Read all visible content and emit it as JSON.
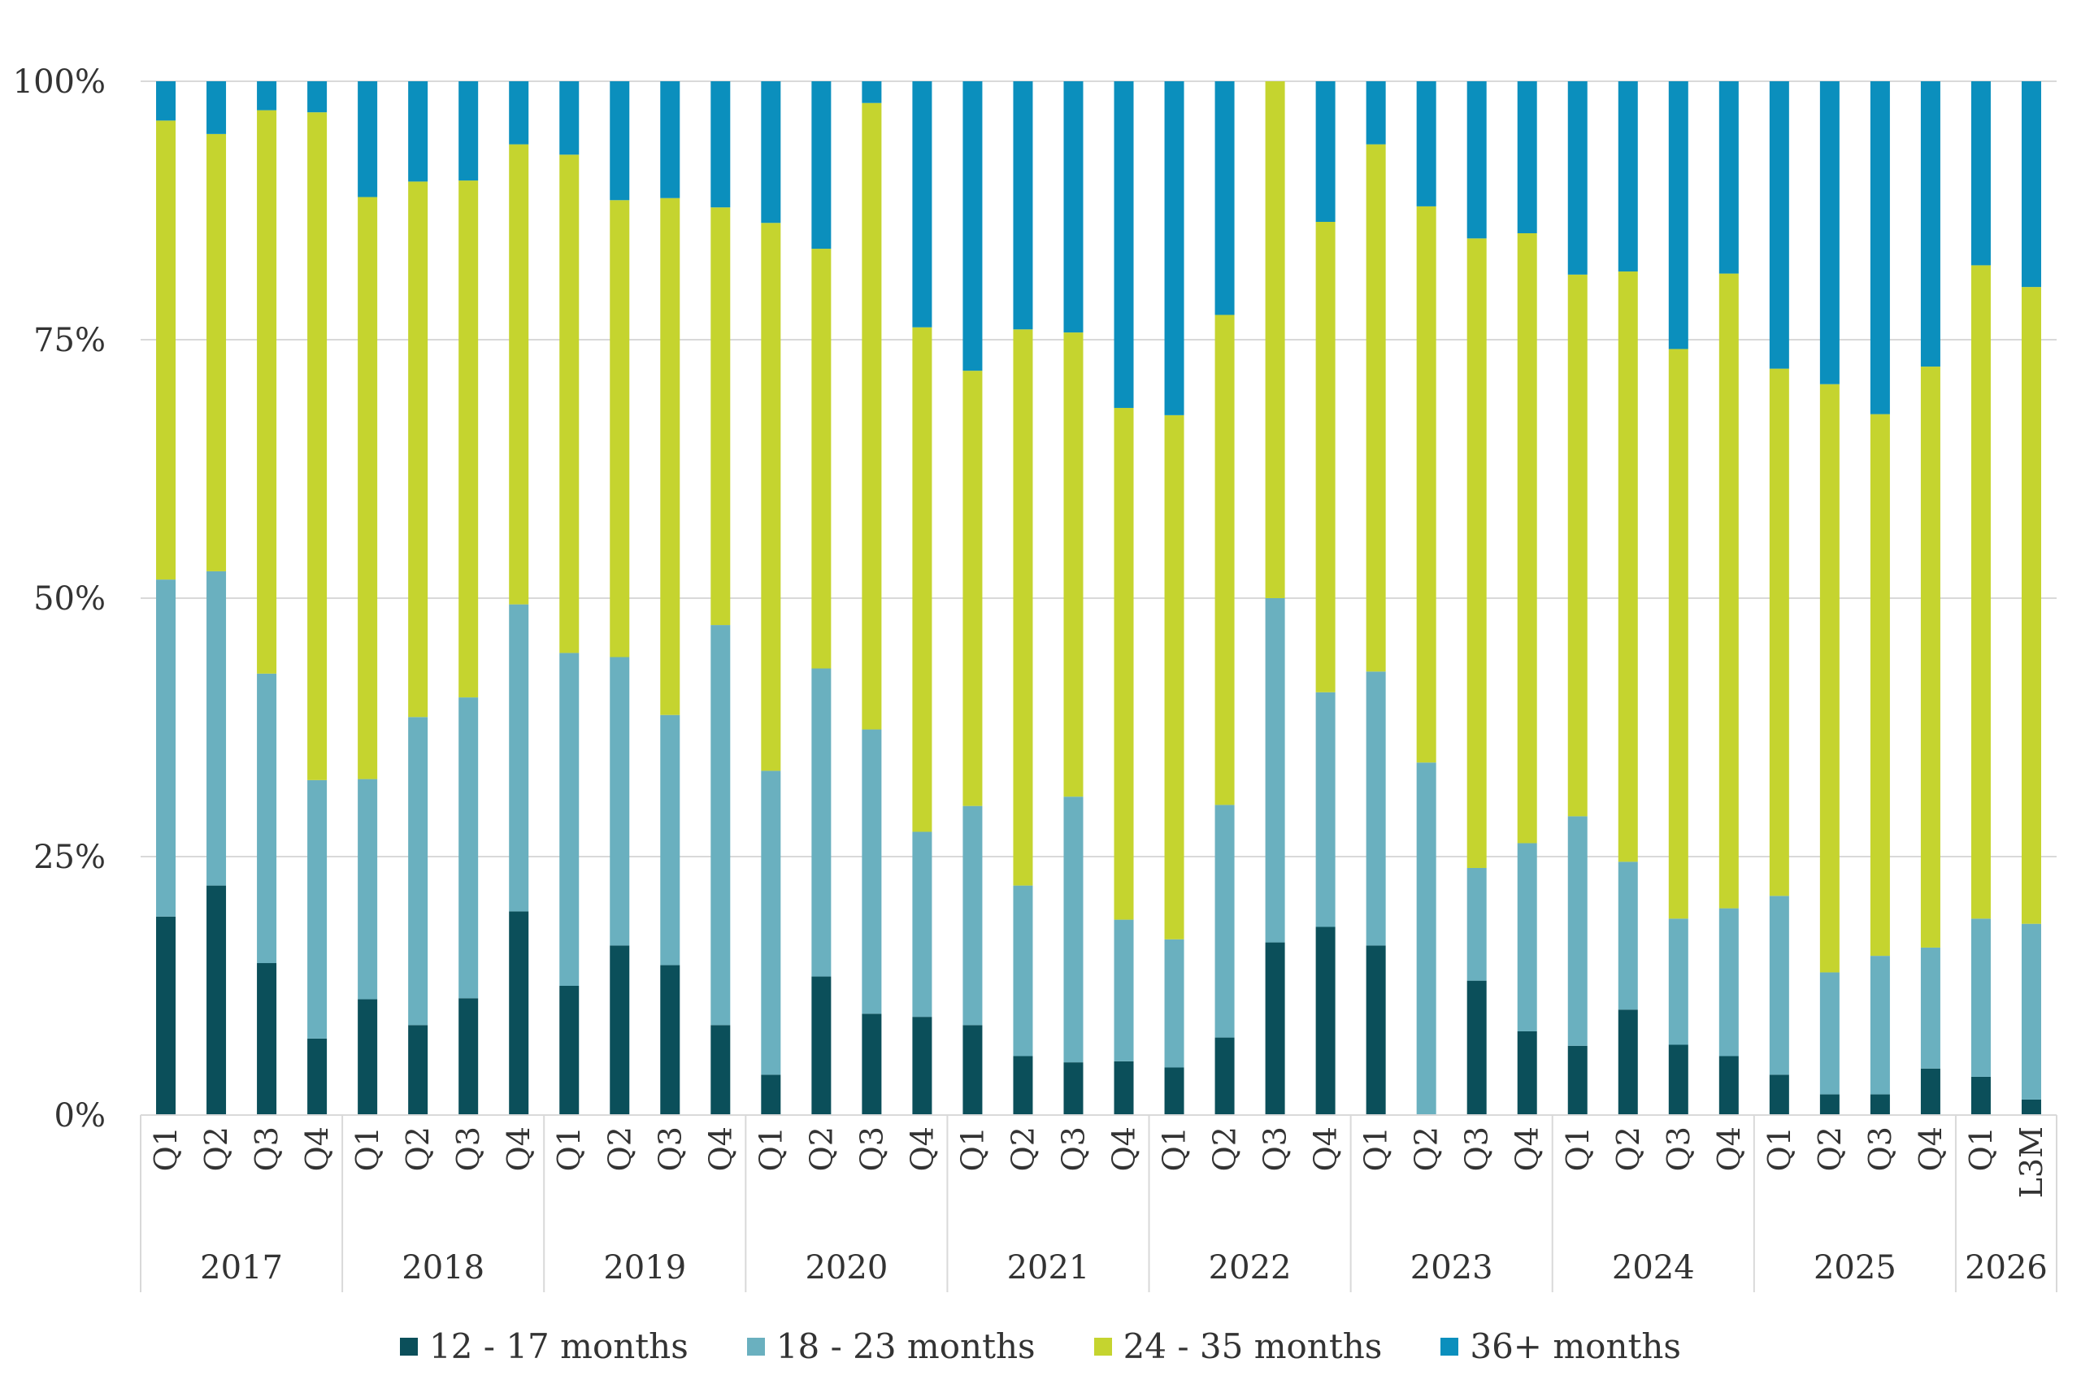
{
  "chart_data": {
    "type": "bar",
    "stacked": true,
    "percent_stacked": true,
    "title": "",
    "xlabel": "",
    "ylabel": "",
    "ylim": [
      0,
      100
    ],
    "y_ticks": [
      "0%",
      "25%",
      "50%",
      "75%",
      "100%"
    ],
    "grid": "horizontal",
    "legend_position": "bottom",
    "categories": [
      "Q1",
      "Q2",
      "Q3",
      "Q4",
      "Q1",
      "Q2",
      "Q3",
      "Q4",
      "Q1",
      "Q2",
      "Q3",
      "Q4",
      "Q1",
      "Q2",
      "Q3",
      "Q4",
      "Q1",
      "Q2",
      "Q3",
      "Q4",
      "Q1",
      "Q2",
      "Q3",
      "Q4",
      "Q1",
      "Q2",
      "Q3",
      "Q4",
      "Q1",
      "Q2",
      "Q3",
      "Q4",
      "Q1",
      "Q2",
      "Q3",
      "Q4",
      "Q1",
      "L3M"
    ],
    "year_groups": [
      {
        "label": "2017",
        "count": 4
      },
      {
        "label": "2018",
        "count": 4
      },
      {
        "label": "2019",
        "count": 4
      },
      {
        "label": "2020",
        "count": 4
      },
      {
        "label": "2021",
        "count": 4
      },
      {
        "label": "2022",
        "count": 4
      },
      {
        "label": "2023",
        "count": 4
      },
      {
        "label": "2024",
        "count": 4
      },
      {
        "label": "2025",
        "count": 4
      },
      {
        "label": "2026",
        "count": 2
      }
    ],
    "series": [
      {
        "name": "12 - 17 months",
        "color": "#0b4f5a",
        "values": [
          19.2,
          22.2,
          14.7,
          7.4,
          11.2,
          8.7,
          11.3,
          19.7,
          12.5,
          16.4,
          14.5,
          8.7,
          3.9,
          13.4,
          9.8,
          9.5,
          8.7,
          5.7,
          5.1,
          5.2,
          4.6,
          7.5,
          16.7,
          18.2,
          16.4,
          0.0,
          13.0,
          8.1,
          6.7,
          10.2,
          6.8,
          5.7,
          3.9,
          2.0,
          2.0,
          4.5,
          3.7,
          1.5
        ]
      },
      {
        "name": "18 - 23 months",
        "color": "#6ab0bf",
        "values": [
          32.6,
          30.4,
          28.0,
          25.0,
          21.3,
          29.8,
          29.1,
          29.7,
          32.2,
          27.9,
          24.2,
          38.7,
          29.4,
          29.8,
          27.5,
          17.9,
          21.2,
          16.5,
          25.7,
          13.7,
          12.4,
          22.5,
          33.3,
          22.7,
          26.5,
          34.1,
          10.9,
          18.2,
          22.2,
          14.3,
          12.2,
          14.3,
          17.3,
          11.8,
          13.4,
          11.7,
          15.3,
          17.0
        ]
      },
      {
        "name": "24 - 35 months",
        "color": "#c5d42f",
        "values": [
          44.4,
          42.3,
          54.5,
          64.6,
          56.3,
          51.8,
          50.0,
          44.5,
          48.2,
          44.2,
          50.0,
          40.4,
          53.0,
          40.6,
          60.6,
          48.8,
          42.1,
          53.8,
          44.9,
          49.5,
          50.7,
          47.4,
          50.0,
          45.5,
          51.0,
          53.8,
          60.9,
          59.0,
          52.4,
          57.1,
          55.1,
          61.4,
          51.0,
          56.9,
          52.4,
          56.2,
          63.2,
          61.6
        ]
      },
      {
        "name": "36+ months",
        "color": "#0b8fbd",
        "values": [
          3.8,
          5.1,
          2.8,
          3.0,
          11.2,
          9.7,
          9.6,
          6.1,
          7.1,
          11.5,
          11.3,
          12.2,
          13.7,
          16.2,
          2.1,
          23.8,
          28.0,
          24.0,
          24.3,
          31.6,
          32.3,
          22.6,
          0.0,
          13.6,
          6.1,
          12.1,
          15.2,
          14.7,
          18.7,
          18.4,
          25.9,
          18.6,
          27.8,
          29.3,
          32.2,
          27.6,
          17.8,
          19.9
        ]
      }
    ]
  }
}
